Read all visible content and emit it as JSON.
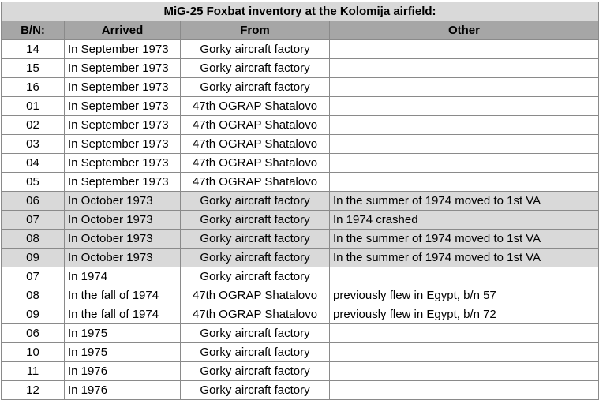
{
  "title": "MiG-25 Foxbat inventory at the Kolomija airfield:",
  "columns": [
    "B/N:",
    "Arrived",
    "From",
    "Other"
  ],
  "rows": [
    {
      "bn": "14",
      "arrived": "In September 1973",
      "from": "Gorky aircraft factory",
      "other": "",
      "shaded": false
    },
    {
      "bn": "15",
      "arrived": "In September 1973",
      "from": "Gorky aircraft factory",
      "other": "",
      "shaded": false
    },
    {
      "bn": "16",
      "arrived": "In September 1973",
      "from": "Gorky aircraft factory",
      "other": "",
      "shaded": false
    },
    {
      "bn": "01",
      "arrived": "In September 1973",
      "from": "47th OGRAP Shatalovo",
      "other": "",
      "shaded": false
    },
    {
      "bn": "02",
      "arrived": "In September 1973",
      "from": "47th OGRAP Shatalovo",
      "other": "",
      "shaded": false
    },
    {
      "bn": "03",
      "arrived": "In September 1973",
      "from": "47th OGRAP Shatalovo",
      "other": "",
      "shaded": false
    },
    {
      "bn": "04",
      "arrived": "In September 1973",
      "from": "47th OGRAP Shatalovo",
      "other": "",
      "shaded": false
    },
    {
      "bn": "05",
      "arrived": "In September 1973",
      "from": "47th OGRAP Shatalovo",
      "other": "",
      "shaded": false
    },
    {
      "bn": "06",
      "arrived": "In October 1973",
      "from": "Gorky aircraft factory",
      "other": "In the summer of 1974 moved to 1st VA",
      "shaded": true
    },
    {
      "bn": "07",
      "arrived": "In October 1973",
      "from": "Gorky aircraft factory",
      "other": "In 1974 crashed",
      "shaded": true
    },
    {
      "bn": "08",
      "arrived": "In October 1973",
      "from": "Gorky aircraft factory",
      "other": "In the summer of 1974 moved to 1st VA",
      "shaded": true
    },
    {
      "bn": "09",
      "arrived": "In October 1973",
      "from": "Gorky aircraft factory",
      "other": "In the summer of 1974 moved to 1st VA",
      "shaded": true
    },
    {
      "bn": "07",
      "arrived": "In 1974",
      "from": "Gorky aircraft factory",
      "other": "",
      "shaded": false
    },
    {
      "bn": "08",
      "arrived": "In the fall of 1974",
      "from": "47th OGRAP Shatalovo",
      "other": "previously flew in Egypt, b/n 57",
      "shaded": false
    },
    {
      "bn": "09",
      "arrived": "In the fall of 1974",
      "from": "47th OGRAP Shatalovo",
      "other": "previously flew in Egypt, b/n 72",
      "shaded": false
    },
    {
      "bn": "06",
      "arrived": "In 1975",
      "from": "Gorky aircraft factory",
      "other": "",
      "shaded": false
    },
    {
      "bn": "10",
      "arrived": "In 1975",
      "from": "Gorky aircraft factory",
      "other": "",
      "shaded": false
    },
    {
      "bn": "11",
      "arrived": "In 1976",
      "from": "Gorky aircraft factory",
      "other": "",
      "shaded": false
    },
    {
      "bn": "12",
      "arrived": "In 1976",
      "from": "Gorky aircraft factory",
      "other": "",
      "shaded": false
    }
  ]
}
